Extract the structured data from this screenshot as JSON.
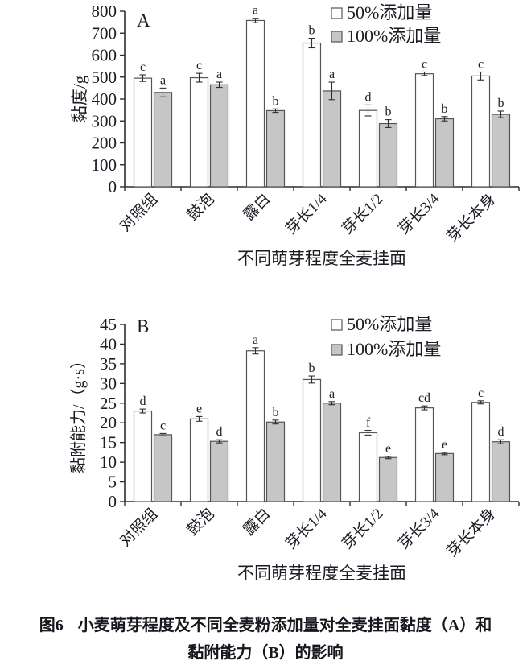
{
  "caption": {
    "number": "图6",
    "line1": "小麦萌芽程度及不同全麦粉添加量对全麦挂面黏度（A）和",
    "line2": "黏附能力（B）的影响"
  },
  "colors": {
    "bar_50_fill": "#ffffff",
    "bar_100_fill": "#c6c6c6",
    "bar_border": "#555555",
    "axis": "#2e2e2e",
    "text": "#1c1c24"
  },
  "chart_data": [
    {
      "type": "bar",
      "panel": "A",
      "title": "",
      "xlabel": "不同萌芽程度全麦挂面",
      "ylabel": "黏度/g",
      "ylim": [
        0,
        800
      ],
      "ytick_step": 100,
      "grid": false,
      "legend_position": "top-right",
      "categories": [
        "对照组",
        "鼓泡",
        "露白",
        "芽长1/4",
        "芽长1/2",
        "芽长3/4",
        "芽长本身"
      ],
      "series": [
        {
          "name": "50%添加量",
          "fill": "#ffffff",
          "values": [
            495,
            497,
            758,
            655,
            348,
            515,
            505
          ],
          "errors": [
            15,
            20,
            10,
            22,
            25,
            8,
            18
          ],
          "letters": [
            "c",
            "c",
            "a",
            "b",
            "d",
            "c",
            "c"
          ]
        },
        {
          "name": "100%添加量",
          "fill": "#c6c6c6",
          "values": [
            430,
            465,
            347,
            437,
            288,
            310,
            330
          ],
          "errors": [
            20,
            12,
            8,
            40,
            18,
            10,
            15
          ],
          "letters": [
            "a",
            "a",
            "b",
            "a",
            "b",
            "b",
            "b"
          ]
        }
      ]
    },
    {
      "type": "bar",
      "panel": "B",
      "title": "",
      "xlabel": "不同萌芽程度全麦挂面",
      "ylabel": "黏附能力/（g·s）",
      "ylim": [
        0,
        45
      ],
      "ytick_step": 5,
      "grid": false,
      "legend_position": "top-right",
      "categories": [
        "对照组",
        "鼓泡",
        "露白",
        "芽长1/4",
        "芽长1/2",
        "芽长3/4",
        "芽长本身"
      ],
      "series": [
        {
          "name": "50%添加量",
          "fill": "#ffffff",
          "values": [
            23,
            21,
            38.3,
            31,
            17.5,
            23.8,
            25.2
          ],
          "errors": [
            0.5,
            0.6,
            0.8,
            0.9,
            0.6,
            0.5,
            0.4
          ],
          "letters": [
            "d",
            "e",
            "a",
            "b",
            "f",
            "cd",
            "c"
          ]
        },
        {
          "name": "100%添加量",
          "fill": "#c6c6c6",
          "values": [
            17,
            15.3,
            20.2,
            25,
            11.2,
            12.2,
            15.2
          ],
          "errors": [
            0.3,
            0.4,
            0.5,
            0.4,
            0.3,
            0.3,
            0.5
          ],
          "letters": [
            "c",
            "d",
            "b",
            "a",
            "e",
            "e",
            "d"
          ]
        }
      ]
    }
  ]
}
